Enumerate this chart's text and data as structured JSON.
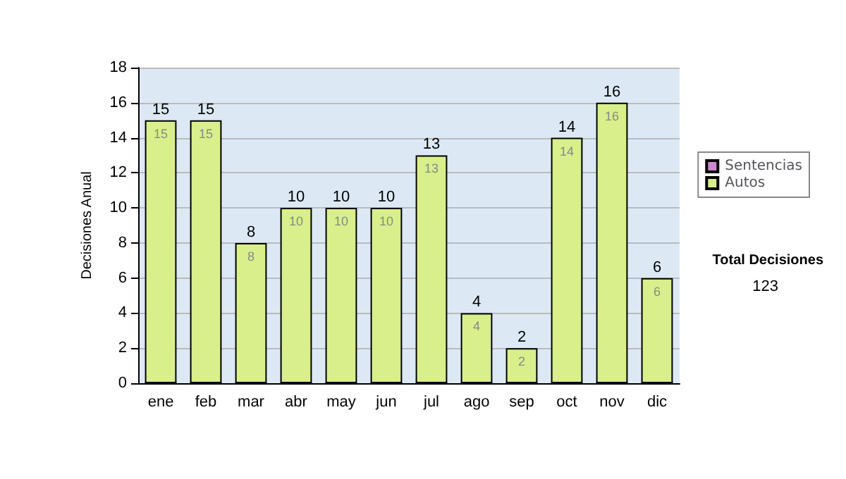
{
  "chart_data": {
    "type": "bar",
    "ylabel": "Decisiones Anual",
    "categories": [
      "ene",
      "feb",
      "mar",
      "abr",
      "may",
      "jun",
      "jul",
      "ago",
      "sep",
      "oct",
      "nov",
      "dic"
    ],
    "series": [
      {
        "name": "Sentencias",
        "color": "#cc88cc",
        "values": [
          0,
          0,
          0,
          0,
          0,
          0,
          0,
          0,
          0,
          0,
          0,
          0
        ]
      },
      {
        "name": "Autos",
        "color": "#d9ef8b",
        "values": [
          15,
          15,
          8,
          10,
          10,
          10,
          13,
          4,
          2,
          14,
          16,
          6
        ],
        "value_labels": [
          "15",
          "15",
          "8",
          "10",
          "10",
          "10",
          "13",
          "4",
          "2",
          "14",
          "16",
          "6"
        ]
      }
    ],
    "stacked": true,
    "totals": [
      "15",
      "15",
      "8",
      "10",
      "10",
      "10",
      "13",
      "4",
      "2",
      "14",
      "16",
      "6"
    ],
    "ylim": [
      0,
      18
    ],
    "yticks": [
      0,
      2,
      4,
      6,
      8,
      10,
      12,
      14,
      16,
      18
    ],
    "grid": "y",
    "legend": "right",
    "annotations": [
      "Total Decisiones",
      "123"
    ]
  }
}
